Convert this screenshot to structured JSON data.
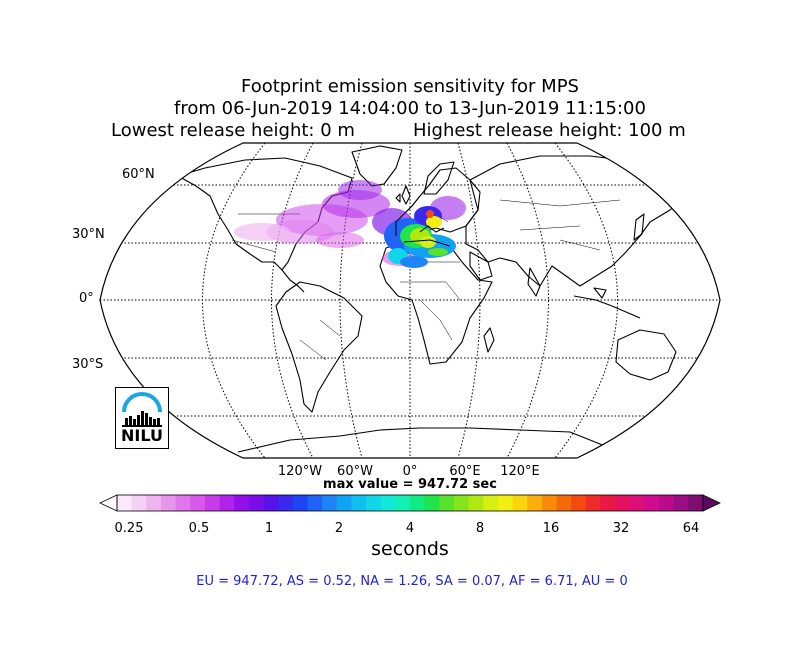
{
  "title": {
    "line1": "Footprint emission sensitivity for MPS",
    "line2": "from 06-Jun-2019 14:04:00 to 13-Jun-2019 11:15:00",
    "release_low": "Lowest release height: 0 m",
    "release_high": "Highest release height: 100 m"
  },
  "map": {
    "projection": "Robinson",
    "lat_labels": [
      "60°N",
      "30°N",
      "0°",
      "30°S"
    ],
    "lon_labels": [
      "120°W",
      "60°W",
      "0°",
      "60°E",
      "120°E"
    ],
    "gridlines": "dotted",
    "plume_region": "North Atlantic to Mediterranean / Southern Europe"
  },
  "max_value": "max value = 947.72 sec",
  "colorbar": {
    "ticks": [
      "0.25",
      "0.5",
      "1",
      "2",
      "4",
      "8",
      "16",
      "32",
      "64"
    ],
    "label": "seconds",
    "colors": [
      "#fbe9fb",
      "#f6d0f6",
      "#efb4ef",
      "#e796ee",
      "#df76ec",
      "#d758ea",
      "#c93be9",
      "#b022ea",
      "#9410e8",
      "#7a0de8",
      "#5a12ea",
      "#3a28ee",
      "#1f44f2",
      "#1f64f4",
      "#1f84f6",
      "#12a2f4",
      "#10bef0",
      "#10d6e8",
      "#12e8d8",
      "#14f0b4",
      "#10ec80",
      "#20e44c",
      "#58e22c",
      "#86e41c",
      "#aeea12",
      "#d4f010",
      "#f2f012",
      "#fad40c",
      "#fab00a",
      "#f88c08",
      "#f46a08",
      "#f24a10",
      "#f02a28",
      "#ec1844",
      "#e4105e",
      "#dc0e78",
      "#d00c8e",
      "#b80c8c",
      "#9c0c84",
      "#7e0c72"
    ]
  },
  "chart_data": {
    "type": "heatmap",
    "title": "Footprint emission sensitivity for MPS",
    "colorbar_scale": "log",
    "colorbar_unit": "seconds",
    "colorbar_ticks": [
      0.25,
      0.5,
      1,
      2,
      4,
      8,
      16,
      32,
      64
    ],
    "max_value_sec": 947.72,
    "region_totals": [
      {
        "region": "EU",
        "value": 947.72
      },
      {
        "region": "AS",
        "value": 0.52
      },
      {
        "region": "NA",
        "value": 1.26
      },
      {
        "region": "SA",
        "value": 0.07
      },
      {
        "region": "AF",
        "value": 6.71
      },
      {
        "region": "AU",
        "value": 0
      }
    ]
  },
  "regions_text": "EU = 947.72,  AS = 0.52,  NA = 1.26,  SA = 0.07,  AF = 6.71,  AU = 0",
  "logo": {
    "text": "NILU"
  }
}
